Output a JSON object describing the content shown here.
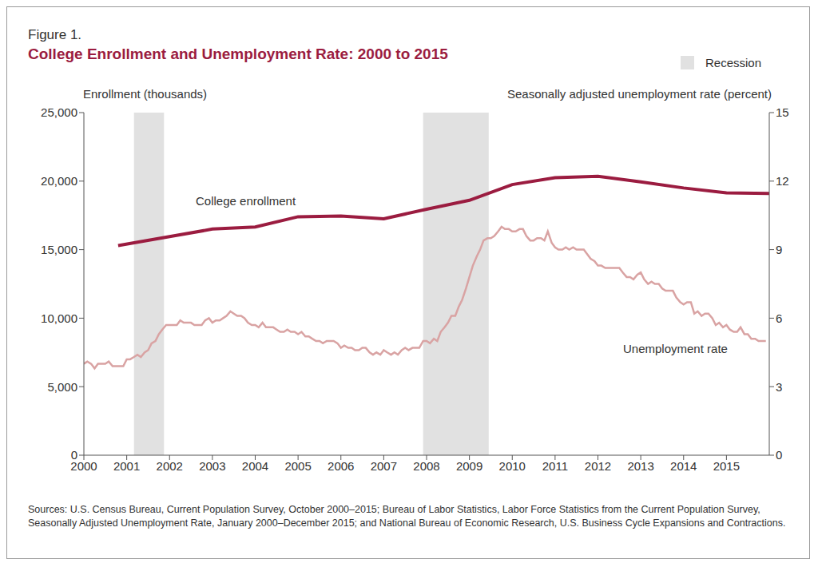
{
  "chart_data": {
    "type": "line",
    "figure_label": "Figure 1.",
    "title": "College Enrollment and Unemployment Rate: 2000 to 2015",
    "y_label": "Enrollment (thousands)",
    "y2_label": "Seasonally adjusted unemployment rate (percent)",
    "source": "Sources: U.S. Census Bureau, Current Population Survey, October 2000–2015; Bureau of Labor Statistics, Labor Force Statistics from the Current Population Survey, Seasonally Adjusted Unemployment Rate, January 2000–December 2015; and National Bureau of Economic Research, U.S. Business Cycle Expansions and Contractions.",
    "xlim": [
      2000,
      2016
    ],
    "xticks": [
      2000,
      2001,
      2002,
      2003,
      2004,
      2005,
      2006,
      2007,
      2008,
      2009,
      2010,
      2011,
      2012,
      2013,
      2014,
      2015
    ],
    "ylim": [
      0,
      25000
    ],
    "yticks": [
      0,
      {
        "value": 5000,
        "label": "5,000"
      },
      {
        "value": 10000,
        "label": "10,000"
      },
      {
        "value": 15000,
        "label": "15,000"
      },
      {
        "value": 20000,
        "label": "20,000"
      },
      {
        "value": 25000,
        "label": "25,000"
      }
    ],
    "y2lim": [
      0,
      15
    ],
    "y2ticks": [
      0,
      3,
      6,
      9,
      12,
      15
    ],
    "recession_label": "Recession",
    "recession_color": "#e1e1e1",
    "recessions": [
      {
        "start": 2001.17,
        "end": 2001.87
      },
      {
        "start": 2007.92,
        "end": 2009.45
      }
    ],
    "series": [
      {
        "name": "College enrollment",
        "color": "#9b1c40",
        "axis": "y",
        "x": [
          2000.8,
          2002,
          2003,
          2004,
          2005,
          2006,
          2007,
          2008,
          2009,
          2010,
          2011,
          2012,
          2013,
          2014,
          2015,
          2016
        ],
        "values": [
          15300,
          15950,
          16500,
          16650,
          17400,
          17450,
          17250,
          17950,
          18600,
          19750,
          20250,
          20350,
          19950,
          19500,
          19150,
          19100
        ]
      },
      {
        "name": "Unemployment rate",
        "color": "#d9a3a3",
        "axis": "y2",
        "x": [
          2000,
          2000.08,
          2000.17,
          2000.25,
          2000.33,
          2000.42,
          2000.5,
          2000.58,
          2000.67,
          2000.75,
          2000.83,
          2000.92,
          2001,
          2001.08,
          2001.17,
          2001.25,
          2001.33,
          2001.42,
          2001.5,
          2001.58,
          2001.67,
          2001.75,
          2001.83,
          2001.92,
          2002,
          2002.08,
          2002.17,
          2002.25,
          2002.33,
          2002.42,
          2002.5,
          2002.58,
          2002.67,
          2002.75,
          2002.83,
          2002.92,
          2003,
          2003.08,
          2003.17,
          2003.25,
          2003.33,
          2003.42,
          2003.5,
          2003.58,
          2003.67,
          2003.75,
          2003.83,
          2003.92,
          2004,
          2004.08,
          2004.17,
          2004.25,
          2004.33,
          2004.42,
          2004.5,
          2004.58,
          2004.67,
          2004.75,
          2004.83,
          2004.92,
          2005,
          2005.08,
          2005.17,
          2005.25,
          2005.33,
          2005.42,
          2005.5,
          2005.58,
          2005.67,
          2005.75,
          2005.83,
          2005.92,
          2006,
          2006.08,
          2006.17,
          2006.25,
          2006.33,
          2006.42,
          2006.5,
          2006.58,
          2006.67,
          2006.75,
          2006.83,
          2006.92,
          2007,
          2007.08,
          2007.17,
          2007.25,
          2007.33,
          2007.42,
          2007.5,
          2007.58,
          2007.67,
          2007.75,
          2007.83,
          2007.92,
          2008,
          2008.08,
          2008.17,
          2008.25,
          2008.33,
          2008.42,
          2008.5,
          2008.58,
          2008.67,
          2008.75,
          2008.83,
          2008.92,
          2009,
          2009.08,
          2009.17,
          2009.25,
          2009.33,
          2009.42,
          2009.5,
          2009.58,
          2009.67,
          2009.75,
          2009.83,
          2009.92,
          2010,
          2010.08,
          2010.17,
          2010.25,
          2010.33,
          2010.42,
          2010.5,
          2010.58,
          2010.67,
          2010.75,
          2010.83,
          2010.92,
          2011,
          2011.08,
          2011.17,
          2011.25,
          2011.33,
          2011.42,
          2011.5,
          2011.58,
          2011.67,
          2011.75,
          2011.83,
          2011.92,
          2012,
          2012.08,
          2012.17,
          2012.25,
          2012.33,
          2012.42,
          2012.5,
          2012.58,
          2012.67,
          2012.75,
          2012.83,
          2012.92,
          2013,
          2013.08,
          2013.17,
          2013.25,
          2013.33,
          2013.42,
          2013.5,
          2013.58,
          2013.67,
          2013.75,
          2013.83,
          2013.92,
          2014,
          2014.08,
          2014.17,
          2014.25,
          2014.33,
          2014.42,
          2014.5,
          2014.58,
          2014.67,
          2014.75,
          2014.83,
          2014.92,
          2015,
          2015.08,
          2015.17,
          2015.25,
          2015.33,
          2015.42,
          2015.5,
          2015.58,
          2015.67,
          2015.75,
          2015.83,
          2015.92
        ],
        "values": [
          4.0,
          4.1,
          4.0,
          3.8,
          4.0,
          4.0,
          4.0,
          4.1,
          3.9,
          3.9,
          3.9,
          3.9,
          4.2,
          4.2,
          4.3,
          4.4,
          4.3,
          4.5,
          4.6,
          4.9,
          5.0,
          5.3,
          5.5,
          5.7,
          5.7,
          5.7,
          5.7,
          5.9,
          5.8,
          5.8,
          5.8,
          5.7,
          5.7,
          5.7,
          5.9,
          6.0,
          5.8,
          5.9,
          5.9,
          6.0,
          6.1,
          6.3,
          6.2,
          6.1,
          6.1,
          6.0,
          5.8,
          5.7,
          5.7,
          5.6,
          5.8,
          5.6,
          5.6,
          5.6,
          5.5,
          5.4,
          5.4,
          5.5,
          5.4,
          5.4,
          5.3,
          5.4,
          5.2,
          5.2,
          5.1,
          5.0,
          5.0,
          4.9,
          5.0,
          5.0,
          5.0,
          4.9,
          4.7,
          4.8,
          4.7,
          4.7,
          4.6,
          4.6,
          4.7,
          4.7,
          4.5,
          4.4,
          4.5,
          4.4,
          4.6,
          4.5,
          4.4,
          4.5,
          4.4,
          4.6,
          4.7,
          4.6,
          4.7,
          4.7,
          4.7,
          5.0,
          5.0,
          4.9,
          5.1,
          5.0,
          5.4,
          5.6,
          5.8,
          6.1,
          6.1,
          6.5,
          6.8,
          7.3,
          7.8,
          8.3,
          8.7,
          9.0,
          9.4,
          9.5,
          9.5,
          9.6,
          9.8,
          10.0,
          9.9,
          9.9,
          9.8,
          9.8,
          9.9,
          9.9,
          9.6,
          9.4,
          9.4,
          9.5,
          9.5,
          9.4,
          9.8,
          9.3,
          9.1,
          9.0,
          9.0,
          9.1,
          9.0,
          9.1,
          9.0,
          9.0,
          9.0,
          8.8,
          8.6,
          8.5,
          8.3,
          8.3,
          8.2,
          8.2,
          8.2,
          8.2,
          8.2,
          8.0,
          7.8,
          7.8,
          7.7,
          7.9,
          8.0,
          7.7,
          7.5,
          7.6,
          7.5,
          7.5,
          7.3,
          7.2,
          7.2,
          7.2,
          6.9,
          6.7,
          6.6,
          6.7,
          6.7,
          6.2,
          6.3,
          6.1,
          6.2,
          6.2,
          6.0,
          5.7,
          5.8,
          5.6,
          5.7,
          5.5,
          5.4,
          5.4,
          5.6,
          5.3,
          5.3,
          5.1,
          5.1,
          5.0,
          5.0,
          5.0
        ]
      }
    ]
  }
}
